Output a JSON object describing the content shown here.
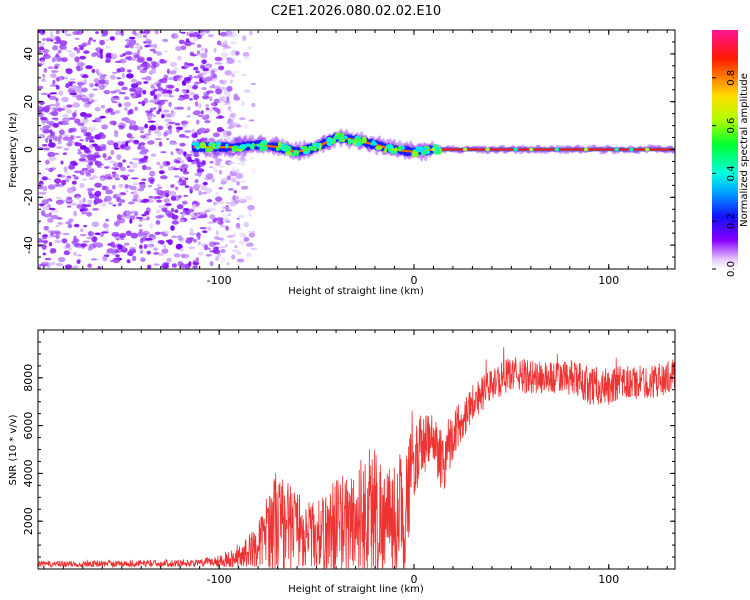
{
  "figure": {
    "title": "C2E1.2026.080.02.02.E10"
  },
  "chart_data": [
    {
      "type": "heatmap",
      "title": "C2E1.2026.080.02.02.E10",
      "xlabel": "Height of straight line (km)",
      "ylabel": "Frequency (Hz)",
      "xlim": [
        -193,
        134
      ],
      "ylim": [
        -50,
        50
      ],
      "xticks": [
        -100,
        0,
        100
      ],
      "yticks": [
        -40,
        -20,
        0,
        20,
        40
      ],
      "xtick_labels": [
        "-100",
        "0",
        "100"
      ],
      "ytick_labels": [
        "-40",
        "-20",
        "0",
        "20",
        "40"
      ],
      "noise_region_x": [
        -193,
        -90
      ],
      "frequency_track": {
        "x": [
          -113,
          -100,
          -90,
          -80,
          -70,
          -60,
          -50,
          -40,
          -30,
          -20,
          -10,
          0,
          10,
          20,
          40,
          60,
          80,
          100,
          120,
          134
        ],
        "y": [
          1,
          1,
          1,
          2,
          1,
          -1,
          1,
          5,
          4,
          2,
          0,
          -1,
          0,
          0,
          0,
          0,
          0,
          0,
          0,
          0
        ]
      },
      "colorbar": {
        "label": "Normalized spectral amplitude",
        "range": [
          0,
          1
        ],
        "ticks": [
          0,
          0.2,
          0.4,
          0.6,
          0.8
        ],
        "tick_labels": [
          "0.0",
          "0.2",
          "0.4",
          "0.6",
          "0.8"
        ],
        "colormap": "hsv-rainbow (violet-blue-cyan-green-yellow-red-magenta)"
      }
    },
    {
      "type": "line",
      "xlabel": "Height of straight line (km)",
      "ylabel": "SNR (10 * v/v)",
      "xlim": [
        -193,
        134
      ],
      "ylim": [
        0,
        10000
      ],
      "xticks": [
        -100,
        0,
        100
      ],
      "yticks": [
        2000,
        4000,
        6000,
        8000
      ],
      "xtick_labels": [
        "-100",
        "0",
        "100"
      ],
      "ytick_labels": [
        "2000",
        "4000",
        "6000",
        "8000"
      ],
      "series": [
        {
          "name": "SNR",
          "color": "#ee3333",
          "envelope_x": [
            -193,
            -110,
            -100,
            -90,
            -80,
            -75,
            -70,
            -65,
            -60,
            -55,
            -50,
            -45,
            -40,
            -35,
            -30,
            -25,
            -20,
            -15,
            -10,
            -5,
            0,
            5,
            10,
            15,
            20,
            25,
            30,
            40,
            50,
            60,
            70,
            80,
            90,
            100,
            110,
            120,
            134
          ],
          "envelope_mean": [
            200,
            250,
            350,
            500,
            1000,
            1700,
            2000,
            1800,
            1700,
            1500,
            1400,
            1500,
            1800,
            1800,
            2000,
            2300,
            2500,
            2000,
            2000,
            2500,
            4500,
            5200,
            5400,
            4500,
            5600,
            6300,
            7000,
            7700,
            8200,
            8000,
            8000,
            8000,
            7700,
            7600,
            7800,
            7800,
            8100
          ],
          "envelope_spread": [
            130,
            150,
            250,
            450,
            900,
            1600,
            2400,
            1900,
            1700,
            1400,
            1400,
            1700,
            2300,
            2200,
            2400,
            2800,
            3000,
            2200,
            2400,
            2800,
            1500,
            1300,
            1100,
            1500,
            1000,
            900,
            800,
            700,
            700,
            750,
            700,
            750,
            800,
            800,
            750,
            700,
            700
          ]
        }
      ]
    }
  ]
}
